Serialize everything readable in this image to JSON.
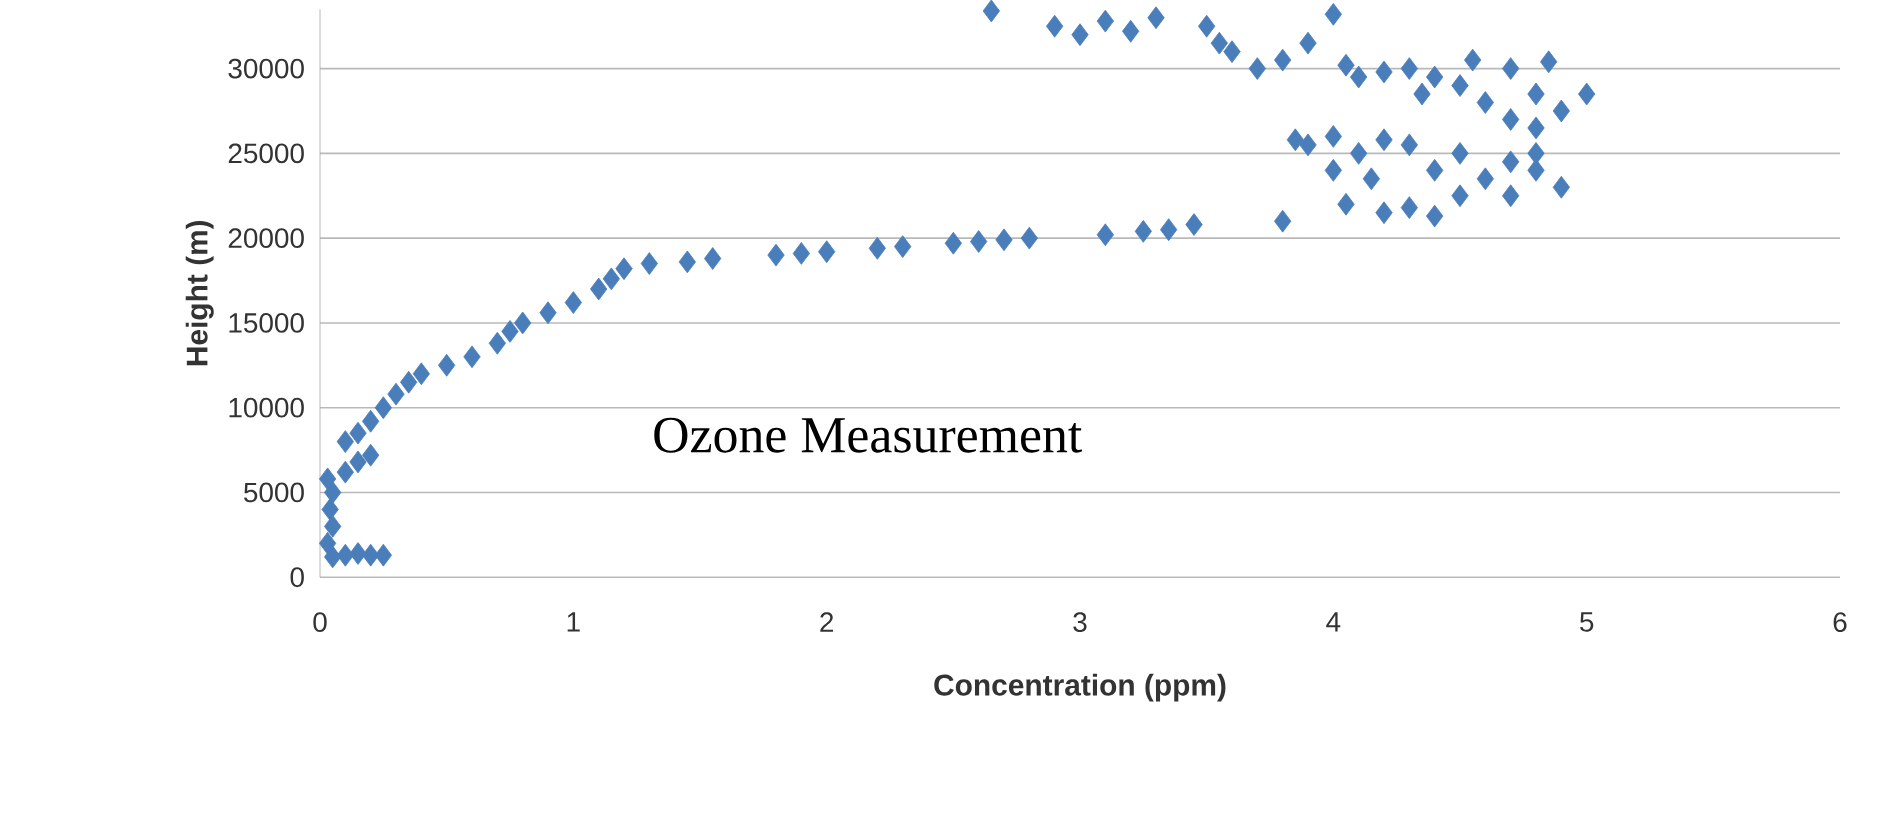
{
  "chart_data": {
    "type": "scatter",
    "xlabel": "Concentration (ppm)",
    "ylabel": "Height (m)",
    "annotations": [
      "Ozone Measurement"
    ],
    "marker": "diamond",
    "grid": "y",
    "color": "#4a7ebb",
    "xlim": [
      0,
      6
    ],
    "xticks": [
      0,
      1,
      2,
      3,
      4,
      5,
      6
    ],
    "ylim": [
      0,
      33500
    ],
    "yticks": [
      0,
      5000,
      10000,
      15000,
      20000,
      25000,
      30000
    ],
    "x": [
      0.05,
      0.1,
      0.15,
      0.2,
      0.25,
      0.03,
      0.05,
      0.04,
      0.05,
      0.03,
      0.1,
      0.15,
      0.2,
      0.1,
      0.15,
      0.2,
      0.25,
      0.3,
      0.35,
      0.4,
      0.5,
      0.6,
      0.7,
      0.75,
      0.8,
      0.9,
      1.0,
      1.1,
      1.15,
      1.2,
      1.3,
      1.45,
      1.55,
      1.8,
      1.9,
      2.0,
      2.2,
      2.3,
      2.5,
      2.6,
      2.7,
      2.8,
      3.1,
      3.25,
      3.35,
      3.45,
      3.8,
      3.85,
      3.9,
      4.0,
      4.1,
      4.2,
      4.3,
      4.0,
      4.15,
      4.05,
      4.2,
      4.3,
      4.4,
      4.5,
      4.6,
      4.7,
      4.8,
      4.9,
      4.5,
      4.4,
      4.7,
      4.8,
      2.9,
      3.0,
      3.1,
      3.2,
      3.3,
      3.5,
      3.55,
      3.6,
      3.7,
      3.8,
      3.9,
      4.0,
      4.05,
      4.1,
      4.2,
      4.3,
      4.4,
      4.5,
      4.6,
      4.55,
      4.7,
      4.8,
      4.85,
      4.9,
      5.0,
      4.7,
      4.8,
      4.35,
      2.65
    ],
    "values": [
      1200,
      1300,
      1400,
      1300,
      1300,
      2000,
      3000,
      4000,
      5000,
      5800,
      6200,
      6800,
      7200,
      8000,
      8500,
      9200,
      10000,
      10800,
      11500,
      12000,
      12500,
      13000,
      13800,
      14500,
      15000,
      15600,
      16200,
      17000,
      17600,
      18200,
      18500,
      18600,
      18800,
      19000,
      19100,
      19200,
      19400,
      19500,
      19700,
      19800,
      19900,
      20000,
      20200,
      20400,
      20500,
      20800,
      21000,
      25800,
      25500,
      26000,
      25000,
      25800,
      25500,
      24000,
      23500,
      22000,
      21500,
      21800,
      21300,
      22500,
      23500,
      24500,
      24000,
      23000,
      25000,
      24000,
      22500,
      25000,
      32500,
      32000,
      32800,
      32200,
      33000,
      32500,
      31500,
      31000,
      30000,
      30500,
      31500,
      33200,
      30200,
      29500,
      29800,
      30000,
      29500,
      29000,
      28000,
      30500,
      30000,
      28500,
      30400,
      27500,
      28500,
      27000,
      26500,
      28500,
      33400
    ]
  }
}
